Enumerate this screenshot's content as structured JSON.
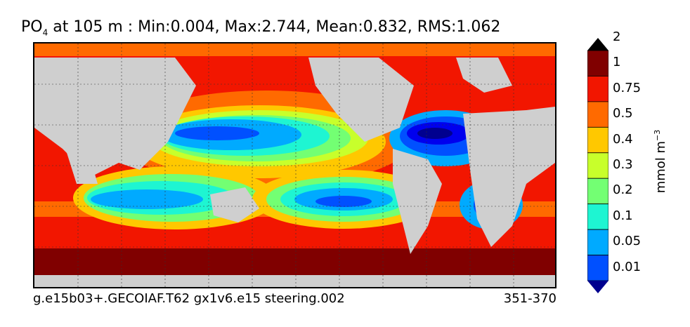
{
  "title": {
    "variable": "PO",
    "subscript": "4",
    "rest": " at 105 m : Min:0.004, Max:2.744, Mean:0.832, RMS:1.062"
  },
  "footer": {
    "case_name": "g.e15b03+.GECOIAF.T62 gx1v6.e15 steering.002",
    "years": "351-370"
  },
  "colorbar": {
    "unit": "mmol m",
    "unit_superscript": "−3",
    "tick_labels": [
      "0.01",
      "0.05",
      "0.1",
      "0.2",
      "0.3",
      "0.4",
      "0.5",
      "0.75",
      "1",
      "2"
    ],
    "colors": [
      "#00008f",
      "#0000ee",
      "#0050ff",
      "#00aaff",
      "#1ef5d2",
      "#73ff73",
      "#c8ff2b",
      "#ffc800",
      "#ff6a00",
      "#f21600",
      "#800000"
    ]
  },
  "map": {
    "land_color": "#cfcfcf",
    "grid": true
  }
}
